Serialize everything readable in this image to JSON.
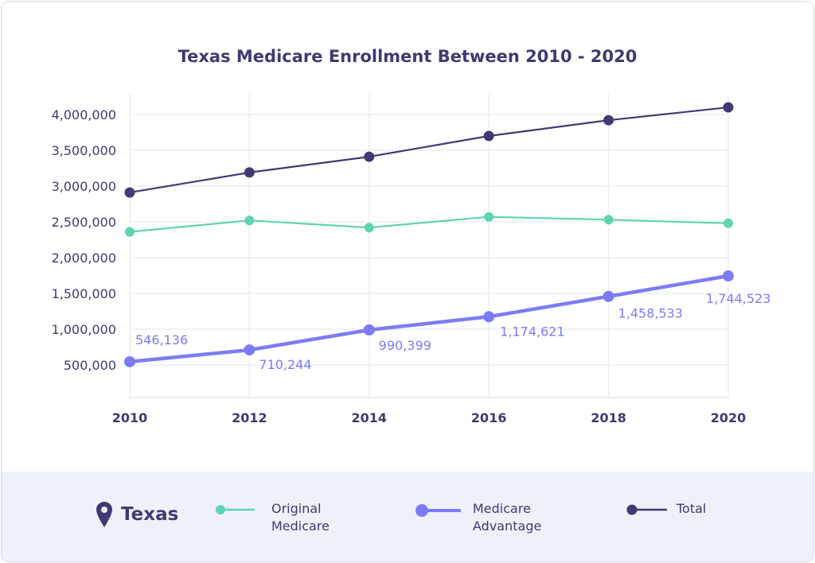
{
  "chart_data": {
    "type": "line",
    "title": "Texas Medicare Enrollment Between 2010 - 2020",
    "x": [
      2010,
      2012,
      2014,
      2016,
      2018,
      2020
    ],
    "x_tick_labels": [
      "2010",
      "2012",
      "2014",
      "2016",
      "2018",
      "2020"
    ],
    "y_tick_labels": [
      "500,000",
      "1,000,000",
      "1,500,000",
      "2,000,000",
      "2,500,000",
      "3,000,000",
      "3,500,000",
      "4,000,000"
    ],
    "y_ticks": [
      500000,
      1000000,
      1500000,
      2000000,
      2500000,
      3000000,
      3500000,
      4000000
    ],
    "ylim": [
      0,
      4200000
    ],
    "grid": true,
    "legend_placement": "bottom",
    "series": [
      {
        "name": "Original Medicare",
        "color": "#5fd3b0",
        "values": [
          2360000,
          2520000,
          2420000,
          2570000,
          2530000,
          2480000
        ]
      },
      {
        "name": "Medicare Advantage",
        "color": "#7b7cf5",
        "values": [
          546136,
          710244,
          990399,
          1174621,
          1458533,
          1744523
        ],
        "data_labels": [
          "546,136",
          "710,244",
          "990,399",
          "1,174,621",
          "1,458,533",
          "1,744,523"
        ]
      },
      {
        "name": "Total",
        "color": "#3d3b72",
        "values": [
          2910000,
          3190000,
          3410000,
          3700000,
          3920000,
          4100000
        ]
      }
    ]
  },
  "legend": {
    "location_icon": "map-pin-icon",
    "location": "Texas",
    "items": [
      {
        "line1": "Original",
        "line2": "Medicare"
      },
      {
        "line1": "Medicare",
        "line2": "Advantage"
      },
      {
        "line1": "Total",
        "line2": ""
      }
    ]
  }
}
